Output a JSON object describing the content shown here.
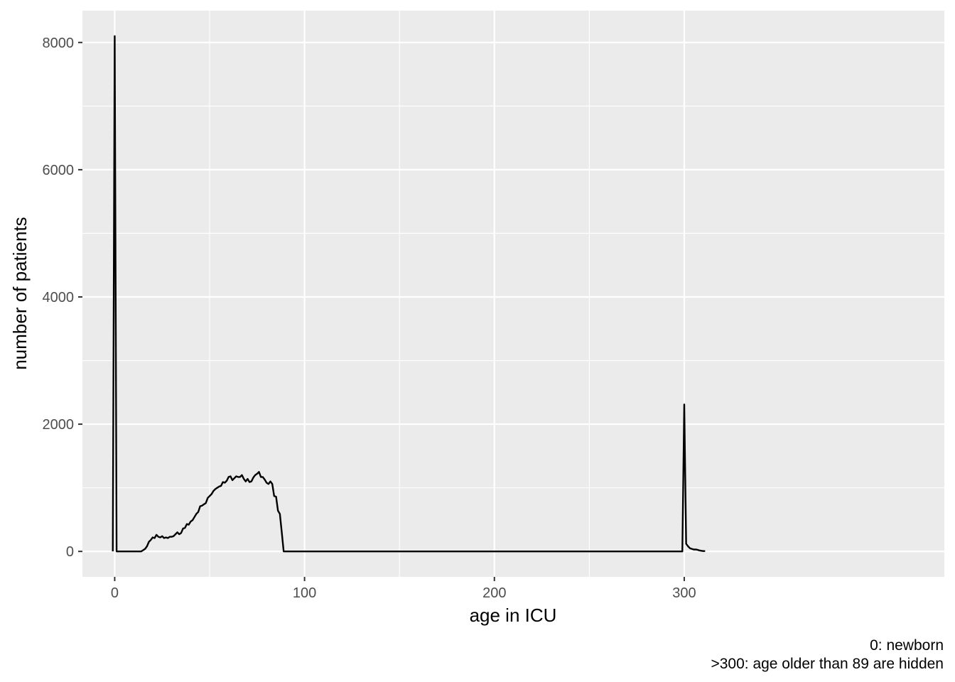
{
  "chart_data": {
    "type": "line",
    "xlabel": "age in ICU",
    "ylabel": "number of patients",
    "xlim": [
      -17,
      437
    ],
    "ylim": [
      -400,
      8500
    ],
    "x_ticks": [
      0,
      100,
      200,
      300
    ],
    "x_tick_labels": [
      "0",
      "100",
      "200",
      "300"
    ],
    "y_ticks": [
      0,
      2000,
      4000,
      6000,
      8000
    ],
    "y_tick_labels": [
      "0",
      "2000",
      "4000",
      "6000",
      "8000"
    ],
    "x_minor_ticks": [
      50,
      150,
      250
    ],
    "y_minor_ticks": [
      1000,
      3000,
      5000,
      7000
    ],
    "grid": true,
    "caption_lines": [
      "0: newborn",
      ">300: age older than 89 are hidden"
    ],
    "series": [
      {
        "color": "#000000",
        "x": [
          -1,
          0,
          1,
          2,
          10,
          14,
          15,
          16,
          17,
          18,
          19,
          20,
          21,
          22,
          23,
          24,
          25,
          26,
          27,
          28,
          29,
          30,
          31,
          32,
          33,
          34,
          35,
          36,
          37,
          38,
          39,
          40,
          41,
          42,
          43,
          44,
          45,
          46,
          47,
          48,
          49,
          50,
          51,
          52,
          53,
          54,
          55,
          56,
          57,
          58,
          59,
          60,
          61,
          62,
          63,
          64,
          65,
          66,
          67,
          68,
          69,
          70,
          71,
          72,
          73,
          74,
          75,
          76,
          77,
          78,
          79,
          80,
          81,
          82,
          83,
          84,
          85,
          86,
          87,
          88,
          89,
          90,
          150,
          200,
          250,
          299,
          300,
          301,
          302,
          303,
          304,
          305,
          306,
          307,
          308,
          309,
          310,
          311
        ],
        "y": [
          0,
          8100,
          0,
          0,
          0,
          0,
          20,
          40,
          80,
          150,
          180,
          220,
          210,
          260,
          230,
          220,
          240,
          210,
          220,
          210,
          230,
          230,
          240,
          270,
          300,
          270,
          290,
          360,
          370,
          430,
          420,
          470,
          490,
          540,
          590,
          620,
          710,
          720,
          740,
          760,
          840,
          870,
          900,
          950,
          980,
          1000,
          1020,
          1030,
          1090,
          1080,
          1110,
          1170,
          1180,
          1120,
          1150,
          1180,
          1170,
          1170,
          1200,
          1140,
          1100,
          1140,
          1090,
          1100,
          1160,
          1200,
          1220,
          1250,
          1170,
          1170,
          1130,
          1080,
          1060,
          1100,
          1060,
          870,
          860,
          640,
          590,
          300,
          0,
          0,
          0,
          0,
          0,
          0,
          2310,
          120,
          80,
          50,
          40,
          30,
          30,
          25,
          15,
          10,
          5,
          5
        ]
      }
    ]
  }
}
